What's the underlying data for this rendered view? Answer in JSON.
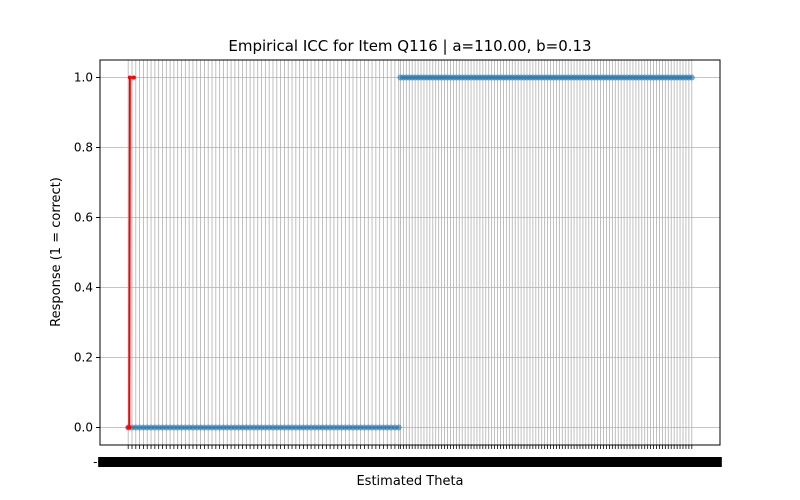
{
  "chart_data": {
    "type": "scatter",
    "title": "Empirical ICC for Item Q116 | a=110.00, b=0.13",
    "xlabel": "Estimated Theta",
    "ylabel": "Response (1 = correct)",
    "ylim": [
      -0.05,
      1.05
    ],
    "xlim": [
      -0.05,
      1.05
    ],
    "y_ticks": [
      "0.0",
      "0.2",
      "0.4",
      "0.6",
      "0.8",
      "1.0"
    ],
    "x_tick_edge_labels": [
      "-0.96",
      "3.3"
    ],
    "grid": true,
    "series": [
      {
        "role": "responses",
        "color": "#1f77b4",
        "zero_segment": {
          "x_start": 0.0,
          "x_end": 0.48,
          "y": 0,
          "count": 72
        },
        "one_segment": {
          "x_start": 0.483,
          "x_end": 1.0,
          "y": 1,
          "count": 100
        }
      },
      {
        "role": "fitted-curve",
        "color": "#ff0000",
        "points": [
          [
            0.0,
            0.0
          ],
          [
            0.002,
            0.0
          ],
          [
            0.003,
            1.0
          ],
          [
            0.01,
            1.0
          ]
        ]
      }
    ]
  }
}
